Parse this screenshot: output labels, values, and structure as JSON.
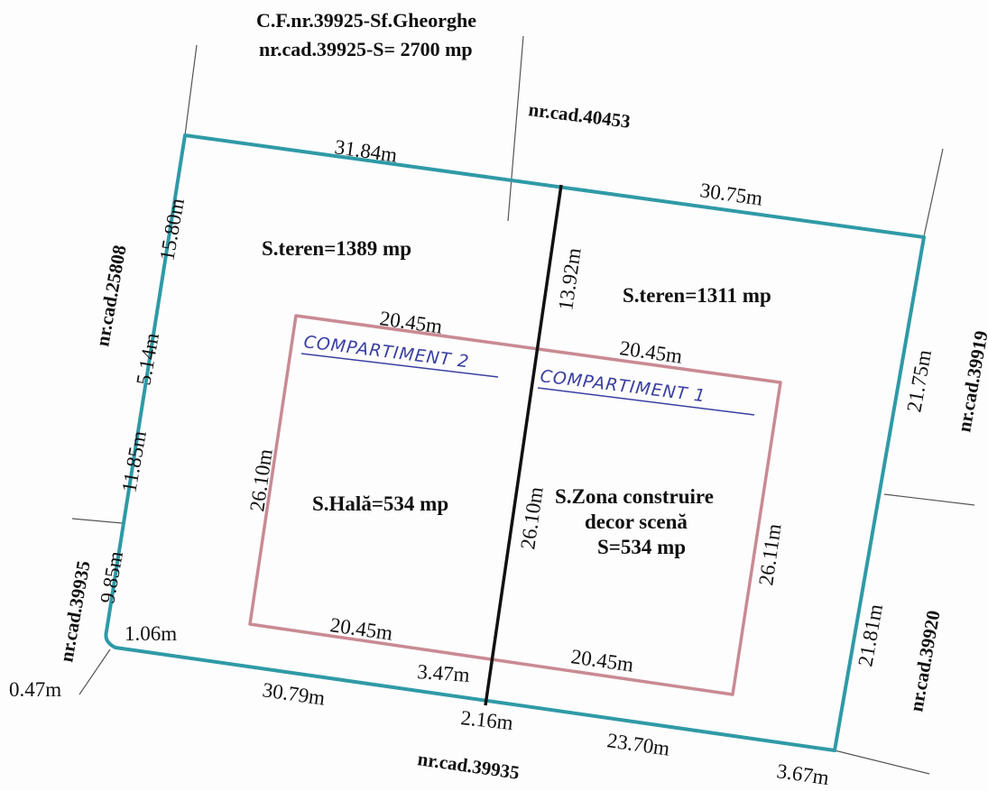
{
  "header": {
    "cf": "C.F.nr.39925-Sf.Gheorghe",
    "cad_area": "nr.cad.39925-S= 2700 mp"
  },
  "neighbors": {
    "top_right": "nr.cad.40453",
    "left": "nr.cad.25808",
    "left_bottom": "nr.cad.39935",
    "right_top": "nr.cad.39919",
    "right_bottom": "nr.cad.39920",
    "bottom": "nr.cad.39935"
  },
  "areas": {
    "left_teren": "S.teren=1389 mp",
    "right_teren": "S.teren=1311 mp",
    "hala": "S.Hală=534 mp",
    "zona_line1": "S.Zona construire",
    "zona_line2": "decor scenă",
    "zona_line3": "S=534 mp"
  },
  "compartments": {
    "c2": "COMPARTIMENT 2",
    "c1": "COMPARTIMENT 1"
  },
  "dimensions": {
    "top_left": "31.84m",
    "top_right": "30.75m",
    "left_1": "15.80m",
    "left_2": "5.14m",
    "left_3": "11.85m",
    "left_4": "9.85m",
    "corner_1": "1.06m",
    "corner_2": "0.47m",
    "bottom_1": "30.79m",
    "bottom_2": "3.47m",
    "bottom_3": "2.16m",
    "bottom_4": "23.70m",
    "bottom_5": "3.67m",
    "right_1": "21.75m",
    "right_2": "21.81m",
    "divider": "13.92m",
    "hala_top": "20.45m",
    "zona_top": "20.45m",
    "hala_left": "26.10m",
    "middle": "26.10m",
    "zona_right": "26.11m",
    "hala_bottom": "20.45m",
    "zona_bottom": "20.45m"
  },
  "colors": {
    "boundary": "#2f9aa6",
    "building": "#c98a93",
    "divider": "#111111",
    "handwriting": "#3a3fa0"
  }
}
